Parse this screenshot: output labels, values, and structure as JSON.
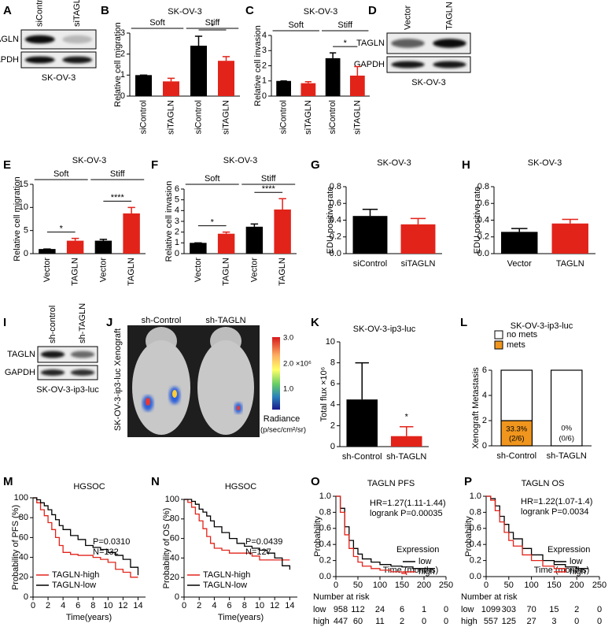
{
  "letters": [
    "A",
    "B",
    "C",
    "D",
    "E",
    "F",
    "G",
    "H",
    "I",
    "J",
    "K",
    "L",
    "M",
    "N",
    "O",
    "P"
  ],
  "blots": [
    {
      "columns": [
        "siControl",
        "siTAGLN"
      ],
      "rows": [
        "TAGLN",
        "GAPDH"
      ],
      "caption": "SK-OV-3"
    },
    {
      "columns": [
        "Vector",
        "TAGLN"
      ],
      "rows": [
        "TAGLN",
        "GAPDH"
      ],
      "caption": "SK-OV-3"
    },
    {
      "columns": [
        "sh-control",
        "sh-TAGLN"
      ],
      "rows": [
        "TAGLN",
        "GAPDH"
      ],
      "caption": "SK-OV-3-ip3-luc"
    }
  ],
  "xenograft": {
    "labels": [
      "sh-Control",
      "sh-TAGLN"
    ],
    "side_label": "SK-OV-3-ip3-luc Xenograft",
    "scale_ticks": [
      "3.0",
      "2.0 ×10⁶",
      "1.0"
    ],
    "scale_title": "Radiance",
    "scale_unit": "(p/sec/cm²/sr)"
  },
  "chart_data": [
    {
      "type": "bar",
      "title": "SK-OV-3",
      "ylabel": "Relative cell migration",
      "categories": [
        "siControl",
        "siTAGLN",
        "siControl",
        "siTAGLN"
      ],
      "values": [
        1,
        0.7,
        2.4,
        1.68
      ],
      "errors": [
        0,
        0.15,
        0.45,
        0.2
      ],
      "colors": [
        "#000000",
        "#e2231a",
        "#000000",
        "#e2231a"
      ],
      "ylim": [
        0,
        3
      ],
      "yticks": [
        0,
        1,
        2,
        3
      ],
      "rotate_labels": true,
      "groups": [
        {
          "label": "Soft",
          "from": 0,
          "to": 1
        },
        {
          "label": "Stiff",
          "from": 2,
          "to": 3
        }
      ],
      "significance": [
        {
          "label": "*",
          "from": 2,
          "to": 3
        }
      ]
    },
    {
      "type": "bar",
      "title": "SK-OV-3",
      "ylabel": "Relative cell invasion",
      "categories": [
        "siControl",
        "siTAGLN",
        "siControl",
        "siTAGLN"
      ],
      "values": [
        1,
        0.85,
        2.5,
        1.35
      ],
      "errors": [
        0,
        0.1,
        0.35,
        0.6
      ],
      "colors": [
        "#000000",
        "#e2231a",
        "#000000",
        "#e2231a"
      ],
      "ylim": [
        0,
        4
      ],
      "yticks": [
        0,
        1,
        2,
        3,
        4
      ],
      "rotate_labels": true,
      "groups": [
        {
          "label": "Soft",
          "from": 0,
          "to": 1
        },
        {
          "label": "Stiff",
          "from": 2,
          "to": 3
        }
      ],
      "significance": [
        {
          "label": "*",
          "from": 2,
          "to": 3
        }
      ]
    },
    {
      "type": "bar",
      "title": "SK-OV-3",
      "ylabel": "Relative cell migration",
      "categories": [
        "Vector",
        "TAGLN",
        "Vector",
        "TAGLN"
      ],
      "values": [
        1,
        2.8,
        2.8,
        8.7
      ],
      "errors": [
        0,
        0.5,
        0.3,
        1.3
      ],
      "colors": [
        "#000000",
        "#e2231a",
        "#000000",
        "#e2231a"
      ],
      "ylim": [
        0,
        15
      ],
      "yticks": [
        0,
        5,
        10,
        15
      ],
      "rotate_labels": true,
      "groups": [
        {
          "label": "Soft",
          "from": 0,
          "to": 1
        },
        {
          "label": "Stiff",
          "from": 2,
          "to": 3
        }
      ],
      "significance": [
        {
          "label": "*",
          "from": 0,
          "to": 1
        },
        {
          "label": "****",
          "from": 2,
          "to": 3
        }
      ]
    },
    {
      "type": "bar",
      "title": "SK-OV-3",
      "ylabel": "Relative cell invasion",
      "categories": [
        "Vector",
        "TAGLN",
        "Vector",
        "TAGLN"
      ],
      "values": [
        1,
        1.85,
        2.5,
        4.1
      ],
      "errors": [
        0,
        0.15,
        0.25,
        1.0
      ],
      "colors": [
        "#000000",
        "#e2231a",
        "#000000",
        "#e2231a"
      ],
      "ylim": [
        0,
        6
      ],
      "yticks": [
        0,
        1,
        2,
        3,
        4,
        5,
        6
      ],
      "rotate_labels": true,
      "groups": [
        {
          "label": "Soft",
          "from": 0,
          "to": 1
        },
        {
          "label": "Stiff",
          "from": 2,
          "to": 3
        }
      ],
      "significance": [
        {
          "label": "*",
          "from": 0,
          "to": 1
        },
        {
          "label": "****",
          "from": 2,
          "to": 3
        }
      ]
    },
    {
      "type": "bar",
      "title": "SK-OV-3",
      "ylabel": "EDU positive rate",
      "categories": [
        "siControl",
        "siTAGLN"
      ],
      "values": [
        0.45,
        0.35
      ],
      "errors": [
        0.08,
        0.07
      ],
      "colors": [
        "#000000",
        "#e2231a"
      ],
      "ylim": [
        0,
        0.8
      ],
      "yticks": [
        {
          "value": 0,
          "label": "0.0"
        },
        0.2,
        0.4,
        0.6,
        0.8
      ],
      "rotate_labels": false,
      "groups": [],
      "significance": []
    },
    {
      "type": "bar",
      "title": "SK-OV-3",
      "ylabel": "EDU positive rate",
      "categories": [
        "Vector",
        "TAGLN"
      ],
      "values": [
        0.26,
        0.36
      ],
      "errors": [
        0.04,
        0.05
      ],
      "colors": [
        "#000000",
        "#e2231a"
      ],
      "ylim": [
        0,
        0.8
      ],
      "yticks": [
        {
          "value": 0,
          "label": "0.0"
        },
        0.2,
        0.4,
        0.6,
        0.8
      ],
      "rotate_labels": false,
      "groups": [],
      "significance": []
    },
    {
      "type": "bar",
      "title": "SK-OV-3-ip3-luc",
      "ylabel": "Total flux ×10⁶",
      "categories": [
        "sh-Control",
        "sh-TAGLN"
      ],
      "values": [
        4.5,
        1
      ],
      "errors": [
        3.5,
        0.9
      ],
      "colors": [
        "#000000",
        "#e2231a"
      ],
      "ylim": [
        0,
        10
      ],
      "yticks": [
        0,
        2,
        4,
        6,
        8,
        10
      ],
      "rotate_labels": false,
      "groups": [],
      "significance": [
        {
          "label": "*",
          "from": 1,
          "to": 1
        }
      ]
    },
    {
      "type": "stacked_bar",
      "title": "SK-OV-3-ip3-luc",
      "ylabel": "Xenograft Metastasis",
      "categories": [
        "sh-Control",
        "sh-TAGLN"
      ],
      "series": [
        {
          "name": "mets",
          "color": "#f0961e",
          "values": [
            2,
            0
          ]
        },
        {
          "name": "no mets",
          "color": "#ffffff",
          "values": [
            4,
            6
          ]
        }
      ],
      "ylim": [
        0,
        6
      ],
      "yticks": [
        0,
        2,
        4,
        6
      ],
      "annotations": [
        "33.3%",
        "(2/6)",
        "0%",
        "(0/6)"
      ]
    },
    {
      "type": "km",
      "title": "HGSOC",
      "ylabel": "Probability of PFS (%)",
      "xlabel": "Time(years)",
      "xlim": [
        0,
        15
      ],
      "xticks": [
        0,
        2,
        4,
        6,
        8,
        10,
        12,
        14
      ],
      "ylim": [
        0,
        100
      ],
      "yticks": [
        0,
        20,
        40,
        60,
        80,
        100
      ],
      "annotations": [
        "P=0.0310",
        "N=132"
      ],
      "series": [
        {
          "name": "TAGLN-high",
          "color": "#e2231a",
          "x": [
            0,
            0.5,
            1,
            1.5,
            2,
            2.5,
            3,
            3.5,
            4,
            5,
            6,
            7,
            8,
            9,
            10,
            11,
            12,
            13,
            14
          ],
          "values": [
            100,
            95,
            88,
            82,
            75,
            68,
            60,
            52,
            45,
            43,
            42,
            42,
            40,
            38,
            35,
            28,
            25,
            20,
            20
          ]
        },
        {
          "name": "TAGLN-low",
          "color": "#000000",
          "x": [
            0,
            0.5,
            1,
            1.5,
            2,
            2.5,
            3,
            3.5,
            4,
            5,
            6,
            7,
            8,
            9,
            10,
            11,
            12,
            13,
            14
          ],
          "values": [
            100,
            98,
            95,
            92,
            88,
            83,
            78,
            72,
            68,
            62,
            58,
            52,
            50,
            48,
            45,
            42,
            38,
            30,
            22
          ]
        }
      ]
    },
    {
      "type": "km",
      "title": "HGSOC",
      "ylabel": "Probability of OS (%)",
      "xlabel": "Time(years)",
      "xlim": [
        0,
        15
      ],
      "xticks": [
        0,
        2,
        4,
        6,
        8,
        10,
        12,
        14
      ],
      "ylim": [
        0,
        100
      ],
      "yticks": [
        0,
        20,
        40,
        60,
        80,
        100
      ],
      "annotations": [
        "P=0.0439",
        "N=127"
      ],
      "series": [
        {
          "name": "TAGLN-high",
          "color": "#e2231a",
          "x": [
            0,
            0.5,
            1,
            1.5,
            2,
            2.5,
            3,
            3.5,
            4,
            5,
            6,
            7,
            8,
            9,
            10,
            11,
            12,
            13,
            14
          ],
          "values": [
            100,
            97,
            92,
            85,
            78,
            70,
            62,
            55,
            50,
            48,
            45,
            45,
            45,
            42,
            38,
            38,
            38,
            38,
            38
          ]
        },
        {
          "name": "TAGLN-low",
          "color": "#000000",
          "x": [
            0,
            0.5,
            1,
            1.5,
            2,
            2.5,
            3,
            3.5,
            4,
            5,
            6,
            7,
            8,
            9,
            10,
            11,
            12,
            13,
            14
          ],
          "values": [
            100,
            100,
            98,
            95,
            90,
            87,
            83,
            78,
            72,
            66,
            60,
            55,
            52,
            50,
            48,
            45,
            40,
            32,
            28
          ]
        }
      ]
    },
    {
      "type": "km",
      "title": "TAGLN PFS",
      "ylabel": "Probability",
      "xlabel": "Time (months)",
      "xlim": [
        0,
        250
      ],
      "xticks": [
        0,
        50,
        100,
        150,
        200,
        250
      ],
      "ylim": [
        0,
        1
      ],
      "yticks": [
        {
          "value": 0,
          "label": "0.0"
        },
        0.2,
        0.4,
        0.6,
        0.8,
        {
          "value": 1,
          "label": "1.0"
        }
      ],
      "annotations": [
        "HR=1.27(1.11-1.44)",
        "logrank P=0.00035"
      ],
      "legend_title": "Expression",
      "series": [
        {
          "name": "low",
          "color": "#000000",
          "x": [
            0,
            10,
            20,
            30,
            40,
            50,
            60,
            80,
            100,
            125,
            150,
            175,
            200,
            225
          ],
          "values": [
            1,
            0.85,
            0.62,
            0.45,
            0.35,
            0.28,
            0.22,
            0.18,
            0.15,
            0.13,
            0.12,
            0.1,
            0.1,
            0.1
          ]
        },
        {
          "name": "high",
          "color": "#e2231a",
          "x": [
            0,
            10,
            20,
            30,
            40,
            50,
            60,
            80,
            100,
            125,
            150,
            160
          ],
          "values": [
            1,
            0.8,
            0.52,
            0.35,
            0.25,
            0.18,
            0.13,
            0.1,
            0.08,
            0.06,
            0.04,
            0.02
          ]
        }
      ],
      "risk": {
        "title": "Number at risk",
        "rows": [
          {
            "name": "low",
            "color": "#000000",
            "values": [
              958,
              112,
              24,
              6,
              1,
              0
            ]
          },
          {
            "name": "high",
            "color": "#e2231a",
            "values": [
              447,
              60,
              11,
              2,
              0,
              0
            ]
          }
        ]
      }
    },
    {
      "type": "km",
      "title": "TAGLN OS",
      "ylabel": "Probability",
      "xlabel": "Time (months)",
      "xlim": [
        0,
        250
      ],
      "xticks": [
        0,
        50,
        100,
        150,
        200,
        250
      ],
      "ylim": [
        0,
        1
      ],
      "yticks": [
        {
          "value": 0,
          "label": "0.0"
        },
        0.2,
        0.4,
        0.6,
        0.8,
        {
          "value": 1,
          "label": "1.0"
        }
      ],
      "annotations": [
        "HR=1.22(1.07-1.4)",
        "logrank P=0.0034"
      ],
      "legend_title": "Expression",
      "series": [
        {
          "name": "low",
          "color": "#000000",
          "x": [
            0,
            10,
            20,
            30,
            40,
            50,
            60,
            80,
            100,
            125,
            150,
            175,
            200,
            225
          ],
          "values": [
            1,
            0.97,
            0.88,
            0.75,
            0.65,
            0.55,
            0.47,
            0.35,
            0.27,
            0.2,
            0.15,
            0.12,
            0.1,
            0.1
          ]
        },
        {
          "name": "high",
          "color": "#e2231a",
          "x": [
            0,
            10,
            20,
            30,
            40,
            50,
            60,
            80,
            100,
            125,
            150,
            175
          ],
          "values": [
            1,
            0.95,
            0.82,
            0.68,
            0.55,
            0.45,
            0.38,
            0.27,
            0.2,
            0.13,
            0.1,
            0.05
          ]
        }
      ],
      "risk": {
        "title": "Number at risk",
        "rows": [
          {
            "name": "low",
            "color": "#000000",
            "values": [
              1099,
              303,
              70,
              15,
              2,
              0
            ]
          },
          {
            "name": "high",
            "color": "#e2231a",
            "values": [
              557,
              125,
              27,
              3,
              0,
              0
            ]
          }
        ]
      }
    }
  ]
}
